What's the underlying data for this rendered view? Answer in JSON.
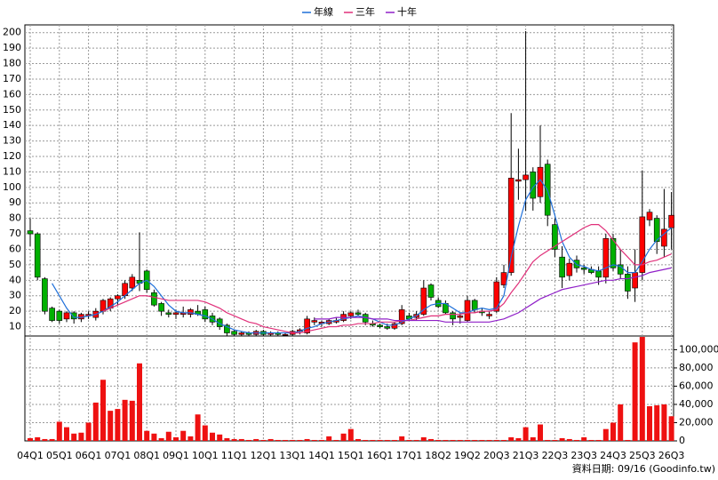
{
  "chart_data": {
    "type": "candlestick",
    "categories": [
      "04Q1",
      null,
      null,
      null,
      "05Q1",
      null,
      null,
      null,
      "06Q1",
      null,
      null,
      null,
      "07Q1",
      null,
      null,
      null,
      "08Q1",
      null,
      null,
      null,
      "09Q1",
      null,
      null,
      null,
      "10Q1",
      null,
      null,
      null,
      "11Q1",
      null,
      null,
      null,
      "12Q1",
      null,
      null,
      null,
      "13Q1",
      null,
      null,
      null,
      "14Q1",
      null,
      null,
      null,
      "15Q1",
      null,
      null,
      null,
      "16Q1",
      null,
      null,
      null,
      "17Q1",
      null,
      null,
      null,
      "18Q2",
      null,
      null,
      null,
      "19Q2",
      null,
      null,
      null,
      "20Q3",
      null,
      null,
      null,
      "21Q3",
      null,
      null,
      null,
      "22Q3",
      null,
      null,
      null,
      "23Q3",
      null,
      null,
      null,
      "24Q3",
      null,
      null,
      null,
      "25Q3",
      null,
      null,
      null,
      "26Q3"
    ],
    "open": [
      72,
      70,
      41,
      22,
      20,
      15,
      19,
      15,
      17,
      16,
      20,
      22,
      28,
      30,
      35,
      40,
      46,
      32,
      25,
      19,
      18,
      18,
      18,
      20,
      21,
      17,
      15,
      11,
      7,
      5,
      6,
      5,
      7,
      5,
      6,
      5,
      5,
      7,
      6,
      13,
      12,
      12,
      13,
      14,
      17,
      19,
      18,
      12,
      11,
      10,
      9,
      12,
      17,
      16,
      18,
      37,
      27,
      25,
      19,
      16,
      14,
      27,
      20,
      17,
      20,
      37,
      45,
      104,
      105,
      110,
      94,
      115,
      76,
      55,
      43,
      53,
      48,
      47,
      46,
      42,
      67,
      50,
      44,
      35,
      45,
      79,
      80,
      62,
      74
    ],
    "high": [
      80,
      71,
      42,
      23,
      21,
      20,
      20,
      19,
      20,
      22,
      28,
      29,
      31,
      40,
      44,
      71,
      47,
      34,
      26,
      21,
      21,
      23,
      22,
      24,
      23,
      19,
      16,
      12,
      8,
      7,
      7,
      8,
      8,
      7,
      7,
      6,
      8,
      9,
      17,
      16,
      14,
      15,
      16,
      20,
      20,
      21,
      19,
      14,
      12,
      12,
      13,
      24,
      19,
      20,
      40,
      38,
      29,
      27,
      20,
      19,
      30,
      28,
      22,
      20,
      42,
      50,
      148,
      125,
      201,
      113,
      140,
      118,
      80,
      62,
      54,
      56,
      50,
      49,
      49,
      70,
      70,
      60,
      49,
      60,
      111,
      86,
      82,
      99,
      97
    ],
    "low": [
      62,
      40,
      18,
      13,
      12,
      13,
      12,
      13,
      15,
      14,
      18,
      20,
      24,
      28,
      33,
      33,
      32,
      23,
      17,
      16,
      15,
      16,
      16,
      17,
      13,
      11,
      8,
      4,
      4,
      4,
      4,
      4,
      4,
      4,
      4,
      4,
      4,
      5,
      5,
      11,
      10,
      11,
      12,
      13,
      15,
      17,
      11,
      10,
      9,
      8,
      8,
      11,
      14,
      14,
      17,
      27,
      22,
      18,
      11,
      12,
      13,
      19,
      17,
      15,
      19,
      35,
      43,
      92,
      85,
      85,
      90,
      75,
      55,
      35,
      40,
      45,
      44,
      44,
      37,
      38,
      46,
      41,
      28,
      26,
      40,
      75,
      57,
      55,
      60
    ],
    "close": [
      70,
      42,
      20,
      14,
      14,
      19,
      15,
      18,
      18,
      20,
      27,
      28,
      30,
      38,
      42,
      38,
      34,
      24,
      20,
      18,
      19,
      19,
      21,
      18,
      15,
      13,
      10,
      6,
      5,
      6,
      5,
      7,
      5,
      6,
      5,
      5,
      7,
      8,
      15,
      14,
      13,
      14,
      14,
      18,
      19,
      18,
      13,
      11,
      10,
      9,
      12,
      21,
      15,
      18,
      35,
      29,
      23,
      19,
      15,
      17,
      27,
      21,
      19,
      18,
      39,
      45,
      106,
      105,
      108,
      93,
      113,
      82,
      60,
      42,
      51,
      48,
      47,
      45,
      42,
      67,
      48,
      44,
      33,
      45,
      81,
      84,
      65,
      73,
      82
    ],
    "up_color": "#ff0000",
    "down_color": "#00b000",
    "series": [
      {
        "name": "年線",
        "color": "#1e6fd9",
        "values": [
          null,
          null,
          null,
          38,
          30,
          22,
          16,
          16,
          17,
          18,
          20,
          23,
          26,
          30,
          34,
          38,
          40,
          36,
          30,
          24,
          20,
          19,
          19,
          18,
          17,
          15,
          12,
          10,
          8,
          7,
          6,
          6,
          6,
          6,
          6,
          6,
          6,
          7,
          9,
          10,
          12,
          13,
          14,
          15,
          16,
          17,
          16,
          15,
          13,
          11,
          11,
          13,
          15,
          17,
          21,
          24,
          25,
          25,
          22,
          19,
          19,
          21,
          22,
          21,
          22,
          30,
          55,
          75,
          92,
          100,
          105,
          98,
          82,
          65,
          55,
          50,
          49,
          47,
          46,
          48,
          50,
          49,
          45,
          45,
          52,
          60,
          66,
          70,
          74
        ]
      },
      {
        "name": "三年",
        "color": "#e0307a",
        "values": [
          null,
          null,
          null,
          null,
          null,
          null,
          null,
          null,
          null,
          null,
          20,
          22,
          24,
          26,
          28,
          30,
          30,
          29,
          28,
          27,
          27,
          27,
          27,
          27,
          26,
          24,
          22,
          19,
          17,
          15,
          13,
          12,
          10,
          9,
          8,
          7,
          6,
          6,
          7,
          8,
          9,
          10,
          10,
          11,
          11,
          12,
          12,
          12,
          13,
          13,
          13,
          14,
          14,
          15,
          16,
          17,
          17,
          18,
          18,
          18,
          19,
          19,
          20,
          20,
          21,
          25,
          32,
          38,
          45,
          52,
          56,
          59,
          62,
          65,
          68,
          71,
          74,
          76,
          76,
          72,
          66,
          60,
          55,
          50,
          50,
          52,
          53,
          55,
          57
        ]
      },
      {
        "name": "十年",
        "color": "#9020c8",
        "values": [
          null,
          null,
          null,
          null,
          null,
          null,
          null,
          null,
          null,
          null,
          null,
          null,
          null,
          null,
          null,
          null,
          null,
          null,
          null,
          null,
          null,
          null,
          null,
          null,
          null,
          null,
          null,
          null,
          null,
          null,
          null,
          null,
          null,
          null,
          null,
          null,
          null,
          null,
          null,
          15,
          15,
          15,
          16,
          16,
          16,
          16,
          16,
          15,
          15,
          15,
          14,
          14,
          14,
          14,
          14,
          14,
          14,
          13,
          13,
          13,
          13,
          13,
          13,
          13,
          14,
          15,
          17,
          19,
          22,
          25,
          28,
          30,
          32,
          34,
          35,
          36,
          37,
          38,
          39,
          40,
          40,
          41,
          41,
          42,
          43,
          45,
          46,
          47,
          48
        ]
      }
    ],
    "ylim": [
      4,
      205
    ],
    "yticks": [
      10,
      20,
      30,
      40,
      50,
      60,
      70,
      80,
      90,
      100,
      110,
      120,
      130,
      140,
      150,
      160,
      170,
      180,
      190,
      200
    ],
    "grid": true,
    "volume": {
      "color": "#ee1111",
      "values": [
        3000,
        4000,
        2000,
        2000,
        21000,
        15000,
        8000,
        9000,
        20000,
        42000,
        67000,
        33000,
        35000,
        45000,
        44000,
        85000,
        11000,
        8000,
        3000,
        10000,
        4000,
        11000,
        5000,
        29000,
        17000,
        9000,
        7000,
        3000,
        2000,
        2000,
        1000,
        2000,
        1000,
        2000,
        1000,
        1000,
        1000,
        1000,
        2000,
        1000,
        1000,
        5000,
        1000,
        8000,
        13000,
        2000,
        1000,
        1000,
        1000,
        1000,
        1000,
        5000,
        1000,
        1000,
        4000,
        2000,
        1000,
        1000,
        1000,
        1000,
        1000,
        1000,
        1000,
        1000,
        1000,
        1000,
        4000,
        3000,
        15000,
        4000,
        18000,
        1000,
        1000,
        3000,
        2000,
        1000,
        4000,
        1000,
        1000,
        13000,
        20000,
        40000,
        1000,
        108000,
        114000,
        38000,
        39000,
        40000,
        27000
      ],
      "ylim": [
        0,
        115000
      ],
      "yticks": [
        0,
        {
          "value": 20000,
          "label": "20,000"
        },
        {
          "value": 40000,
          "label": "40,000"
        },
        {
          "value": 60000,
          "label": "60,000"
        },
        {
          "value": 80000,
          "label": "80,000"
        },
        {
          "value": 100000,
          "label": "100,000"
        }
      ]
    },
    "footnote": "資料日期: 09/16 (Goodinfo.tw)"
  }
}
